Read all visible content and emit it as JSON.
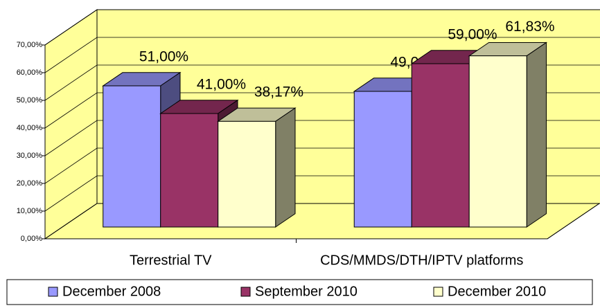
{
  "chart_data": {
    "type": "bar3d",
    "categories": [
      "Terrestrial TV",
      "CDS/MMDS/DTH/IPTV platforms"
    ],
    "series": [
      {
        "name": "December 2008",
        "color": "#9999ff",
        "values": [
          51,
          49
        ],
        "value_labels": [
          "51,00%",
          "49,00%"
        ]
      },
      {
        "name": "September 2010",
        "color": "#993366",
        "values": [
          41,
          59
        ],
        "value_labels": [
          "41,00%",
          "59,00%"
        ]
      },
      {
        "name": "December 2010",
        "color": "#ffffcc",
        "values": [
          38.17,
          61.83
        ],
        "value_labels": [
          "38,17%",
          "61,83%"
        ]
      }
    ],
    "ylim": [
      0,
      70
    ],
    "yticks": [
      {
        "value": 0,
        "label": "0,00%"
      },
      {
        "value": 10,
        "label": "10,00%"
      },
      {
        "value": 20,
        "label": "20,00%"
      },
      {
        "value": 30,
        "label": "30,00%"
      },
      {
        "value": 40,
        "label": "40,00%"
      },
      {
        "value": 50,
        "label": "50,00%"
      },
      {
        "value": 60,
        "label": "60,00%"
      },
      {
        "value": 70,
        "label": "70,00%"
      }
    ],
    "wall_color": "#ffff99",
    "grid": true,
    "legend": "bottom"
  }
}
